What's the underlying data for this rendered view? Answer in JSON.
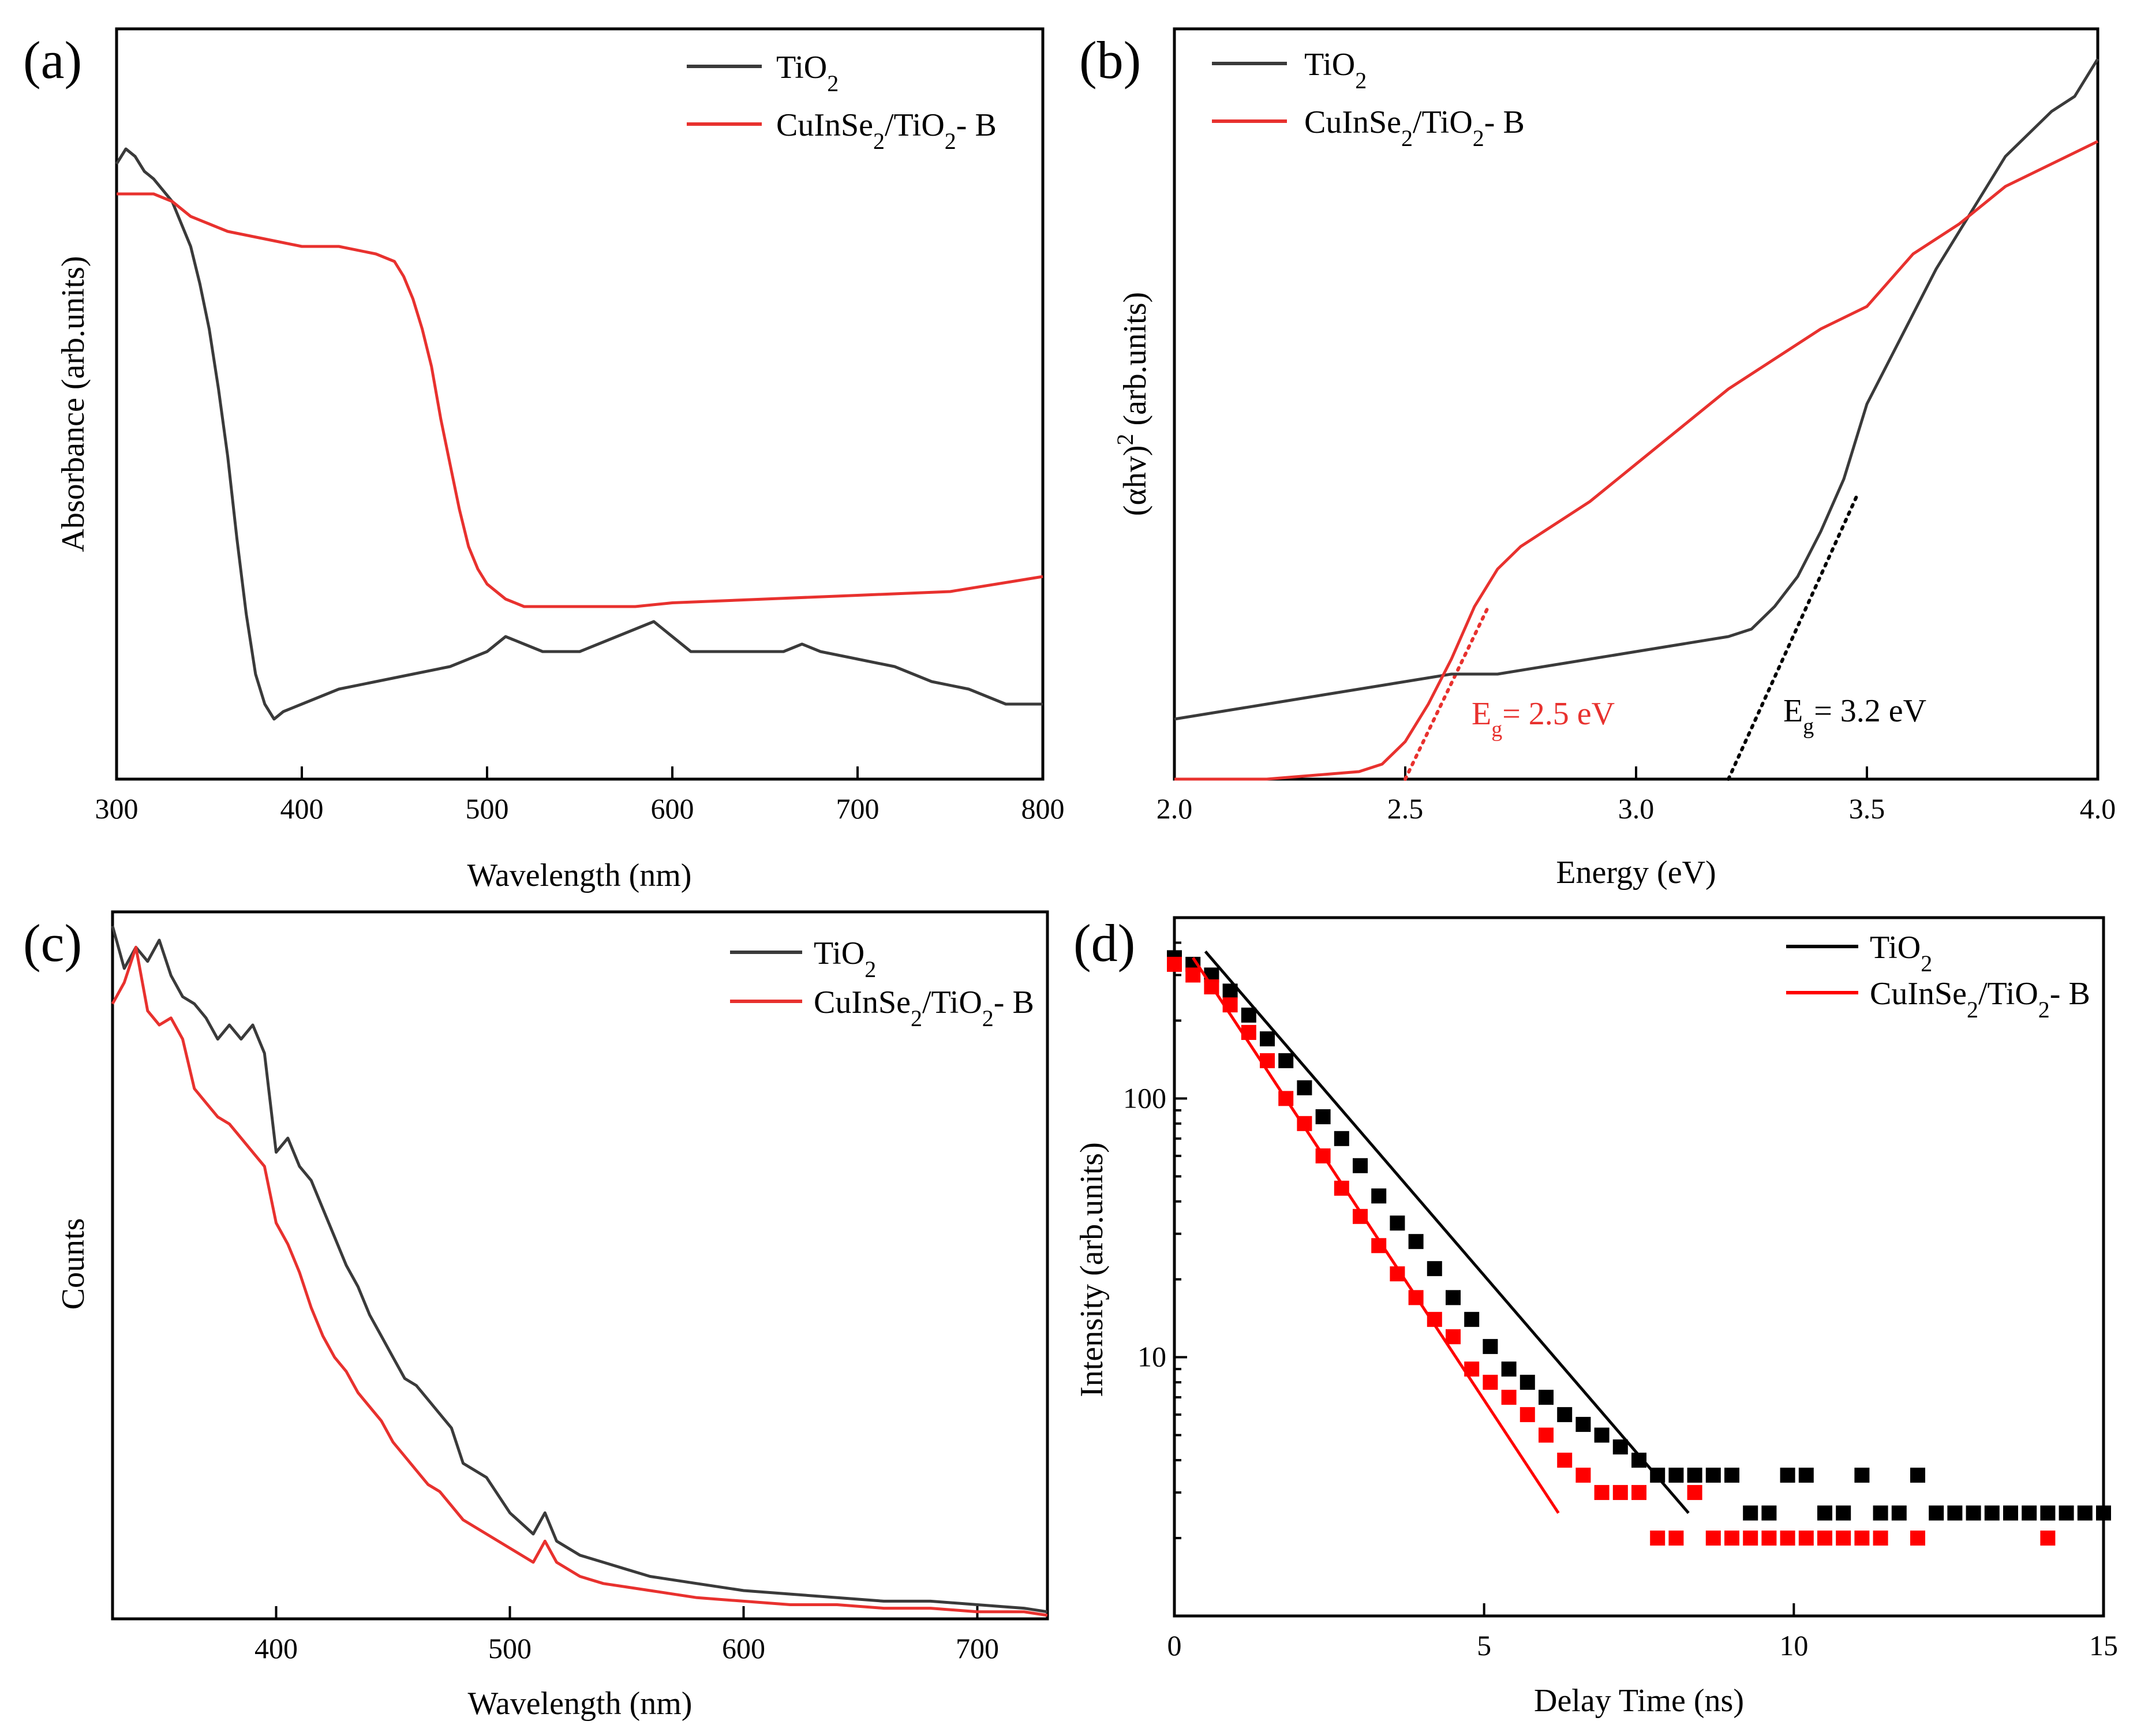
{
  "colors": {
    "tio2": "#3a3a3a",
    "tio2_d": "#000000",
    "cis": "#e8312e",
    "cis_d": "#ff0000"
  },
  "chart_data": [
    {
      "panel": "(a)",
      "type": "line",
      "xlabel": "Wavelength (nm)",
      "ylabel": "Absorbance (arb.units)",
      "xlim": [
        300,
        800
      ],
      "ylim": [
        0,
        1
      ],
      "xticks": [
        300,
        400,
        500,
        600,
        700,
        800
      ],
      "legend": [
        "TiO2",
        "CuInSe2/TiO2-B"
      ],
      "series": [
        {
          "name": "TiO2",
          "x": [
            300,
            305,
            310,
            315,
            320,
            330,
            340,
            345,
            350,
            355,
            360,
            365,
            370,
            375,
            380,
            385,
            390,
            400,
            410,
            420,
            440,
            460,
            480,
            500,
            510,
            520,
            530,
            540,
            550,
            560,
            570,
            580,
            590,
            600,
            610,
            620,
            640,
            660,
            670,
            680,
            700,
            720,
            740,
            760,
            780,
            800
          ],
          "y": [
            0.82,
            0.84,
            0.83,
            0.81,
            0.8,
            0.77,
            0.71,
            0.66,
            0.6,
            0.52,
            0.43,
            0.32,
            0.22,
            0.14,
            0.1,
            0.08,
            0.09,
            0.1,
            0.11,
            0.12,
            0.13,
            0.14,
            0.15,
            0.17,
            0.19,
            0.18,
            0.17,
            0.17,
            0.17,
            0.18,
            0.19,
            0.2,
            0.21,
            0.19,
            0.17,
            0.17,
            0.17,
            0.17,
            0.18,
            0.17,
            0.16,
            0.15,
            0.13,
            0.12,
            0.1,
            0.1
          ]
        },
        {
          "name": "CuInSe2/TiO2-B",
          "x": [
            300,
            310,
            320,
            330,
            340,
            350,
            360,
            380,
            400,
            420,
            440,
            450,
            455,
            460,
            465,
            470,
            475,
            480,
            485,
            490,
            495,
            500,
            505,
            510,
            520,
            530,
            540,
            560,
            580,
            600,
            650,
            700,
            750,
            800
          ],
          "y": [
            0.78,
            0.78,
            0.78,
            0.77,
            0.75,
            0.74,
            0.73,
            0.72,
            0.71,
            0.71,
            0.7,
            0.69,
            0.67,
            0.64,
            0.6,
            0.55,
            0.48,
            0.42,
            0.36,
            0.31,
            0.28,
            0.26,
            0.25,
            0.24,
            0.23,
            0.23,
            0.23,
            0.23,
            0.23,
            0.235,
            0.24,
            0.245,
            0.25,
            0.27
          ]
        }
      ]
    },
    {
      "panel": "(b)",
      "type": "line",
      "xlabel": "Energy (eV)",
      "ylabel": "(αhv)² (arb.units)",
      "xlim": [
        2.0,
        4.0
      ],
      "ylim": [
        0,
        1
      ],
      "xticks": [
        2.0,
        2.5,
        3.0,
        3.5,
        4.0
      ],
      "legend": [
        "TiO2",
        "CuInSe2/TiO2-B"
      ],
      "annotations": [
        {
          "text": "Eg = 2.5 eV",
          "x": 2.5
        },
        {
          "text": "Eg = 3.2 eV",
          "x": 3.2
        }
      ],
      "fits": [
        {
          "series": "CuInSe2/TiO2-B",
          "x": [
            2.5,
            2.68
          ],
          "y": [
            0.0,
            0.23
          ]
        },
        {
          "series": "TiO2",
          "x": [
            3.2,
            3.48
          ],
          "y": [
            0.0,
            0.38
          ]
        }
      ],
      "series": [
        {
          "name": "TiO2",
          "x": [
            2.0,
            2.1,
            2.2,
            2.3,
            2.4,
            2.5,
            2.6,
            2.7,
            2.8,
            2.9,
            3.0,
            3.1,
            3.2,
            3.25,
            3.3,
            3.35,
            3.4,
            3.45,
            3.5,
            3.55,
            3.6,
            3.65,
            3.7,
            3.75,
            3.8,
            3.85,
            3.9,
            3.95,
            4.0
          ],
          "y": [
            0.08,
            0.09,
            0.1,
            0.11,
            0.12,
            0.13,
            0.14,
            0.14,
            0.15,
            0.16,
            0.17,
            0.18,
            0.19,
            0.2,
            0.23,
            0.27,
            0.33,
            0.4,
            0.5,
            0.56,
            0.62,
            0.68,
            0.73,
            0.78,
            0.83,
            0.86,
            0.89,
            0.91,
            0.96
          ]
        },
        {
          "name": "CuInSe2/TiO2-B",
          "x": [
            2.0,
            2.2,
            2.4,
            2.45,
            2.5,
            2.55,
            2.6,
            2.65,
            2.7,
            2.75,
            2.8,
            2.9,
            3.0,
            3.1,
            3.2,
            3.3,
            3.4,
            3.5,
            3.6,
            3.7,
            3.8,
            3.9,
            4.0
          ],
          "y": [
            0.0,
            0.0,
            0.01,
            0.02,
            0.05,
            0.1,
            0.16,
            0.23,
            0.28,
            0.31,
            0.33,
            0.37,
            0.42,
            0.47,
            0.52,
            0.56,
            0.6,
            0.63,
            0.7,
            0.74,
            0.79,
            0.82,
            0.85
          ]
        }
      ]
    },
    {
      "panel": "(c)",
      "type": "line",
      "xlabel": "Wavelength (nm)",
      "ylabel": "Counts",
      "xlim": [
        330,
        730
      ],
      "ylim": [
        0,
        1
      ],
      "xticks": [
        400,
        500,
        600,
        700
      ],
      "legend": [
        "TiO2",
        "CuInSe2/TiO2-B"
      ],
      "series": [
        {
          "name": "TiO2",
          "x": [
            330,
            335,
            340,
            345,
            350,
            355,
            360,
            365,
            370,
            375,
            380,
            385,
            390,
            395,
            400,
            405,
            410,
            415,
            420,
            425,
            430,
            435,
            440,
            445,
            450,
            455,
            460,
            465,
            470,
            475,
            480,
            490,
            500,
            510,
            515,
            520,
            530,
            540,
            550,
            560,
            580,
            600,
            620,
            640,
            660,
            680,
            700,
            720,
            730
          ],
          "y": [
            0.98,
            0.92,
            0.95,
            0.93,
            0.96,
            0.91,
            0.88,
            0.87,
            0.85,
            0.82,
            0.84,
            0.82,
            0.84,
            0.8,
            0.66,
            0.68,
            0.64,
            0.62,
            0.58,
            0.54,
            0.5,
            0.47,
            0.43,
            0.4,
            0.37,
            0.34,
            0.33,
            0.31,
            0.29,
            0.27,
            0.22,
            0.2,
            0.15,
            0.12,
            0.15,
            0.11,
            0.09,
            0.08,
            0.07,
            0.06,
            0.05,
            0.04,
            0.035,
            0.03,
            0.025,
            0.025,
            0.02,
            0.015,
            0.01
          ]
        },
        {
          "name": "CuInSe2/TiO2-B",
          "x": [
            330,
            335,
            340,
            345,
            350,
            355,
            360,
            365,
            370,
            375,
            380,
            385,
            390,
            395,
            400,
            405,
            410,
            415,
            420,
            425,
            430,
            435,
            440,
            445,
            450,
            455,
            460,
            465,
            470,
            475,
            480,
            490,
            500,
            510,
            515,
            520,
            530,
            540,
            550,
            560,
            580,
            600,
            620,
            640,
            660,
            680,
            700,
            720,
            730
          ],
          "y": [
            0.87,
            0.9,
            0.95,
            0.86,
            0.84,
            0.85,
            0.82,
            0.75,
            0.73,
            0.71,
            0.7,
            0.68,
            0.66,
            0.64,
            0.56,
            0.53,
            0.49,
            0.44,
            0.4,
            0.37,
            0.35,
            0.32,
            0.3,
            0.28,
            0.25,
            0.23,
            0.21,
            0.19,
            0.18,
            0.16,
            0.14,
            0.12,
            0.1,
            0.08,
            0.11,
            0.08,
            0.06,
            0.05,
            0.045,
            0.04,
            0.03,
            0.025,
            0.02,
            0.02,
            0.015,
            0.015,
            0.01,
            0.01,
            0.005
          ]
        }
      ]
    },
    {
      "panel": "(d)",
      "type": "scatter",
      "xlabel": "Delay Time (ns)",
      "ylabel": "Intensity (arb.units)",
      "xlim": [
        0,
        15
      ],
      "ylim": [
        1,
        500
      ],
      "yscale": "log",
      "xticks": [
        0,
        5,
        10,
        15
      ],
      "yticks": [
        10,
        100
      ],
      "legend": [
        "TiO2",
        "CuInSe2/TiO2-B"
      ],
      "series": [
        {
          "name": "TiO2",
          "x": [
            0,
            0.3,
            0.6,
            0.9,
            1.2,
            1.5,
            1.8,
            2.1,
            2.4,
            2.7,
            3.0,
            3.3,
            3.6,
            3.9,
            4.2,
            4.5,
            4.8,
            5.1,
            5.4,
            5.7,
            6.0,
            6.3,
            6.6,
            6.9,
            7.2,
            7.5,
            7.8,
            8.1,
            8.4,
            8.7,
            9.0,
            9.3,
            9.6,
            9.9,
            10.2,
            10.5,
            10.8,
            11.1,
            11.4,
            11.7,
            12.0,
            12.3,
            12.6,
            12.9,
            13.2,
            13.5,
            13.8,
            14.1,
            14.4,
            14.7,
            15.0
          ],
          "y": [
            350,
            330,
            300,
            260,
            210,
            170,
            140,
            110,
            85,
            70,
            55,
            42,
            33,
            28,
            22,
            17,
            14,
            11,
            9,
            8,
            7,
            6,
            5.5,
            5,
            4.5,
            4,
            3.5,
            3.5,
            3.5,
            3.5,
            3.5,
            2.5,
            2.5,
            3.5,
            3.5,
            2.5,
            2.5,
            3.5,
            2.5,
            2.5,
            3.5,
            2.5,
            2.5,
            2.5,
            2.5,
            2.5,
            2.5,
            2.5,
            2.5,
            2.5,
            2.5
          ]
        },
        {
          "name": "CuInSe2/TiO2-B",
          "x": [
            0,
            0.3,
            0.6,
            0.9,
            1.2,
            1.5,
            1.8,
            2.1,
            2.4,
            2.7,
            3.0,
            3.3,
            3.6,
            3.9,
            4.2,
            4.5,
            4.8,
            5.1,
            5.4,
            5.7,
            6.0,
            6.3,
            6.6,
            6.9,
            7.2,
            7.5,
            7.8,
            8.1,
            8.4,
            8.7,
            9.0,
            9.3,
            9.6,
            9.9,
            10.2,
            10.5,
            10.8,
            11.1,
            11.4,
            12.0,
            14.1
          ],
          "y": [
            330,
            300,
            270,
            230,
            180,
            140,
            100,
            80,
            60,
            45,
            35,
            27,
            21,
            17,
            14,
            12,
            9,
            8,
            7,
            6,
            5,
            4,
            3.5,
            3,
            3,
            3,
            2,
            2,
            3,
            2,
            2,
            2,
            2,
            2,
            2,
            2,
            2,
            2,
            2,
            2,
            2
          ]
        }
      ],
      "fits": [
        {
          "series": "TiO2",
          "x": [
            0.5,
            8.3
          ],
          "y": [
            370,
            2.5
          ]
        },
        {
          "series": "CuInSe2/TiO2-B",
          "x": [
            0.3,
            6.2
          ],
          "y": [
            350,
            2.5
          ]
        }
      ]
    }
  ]
}
